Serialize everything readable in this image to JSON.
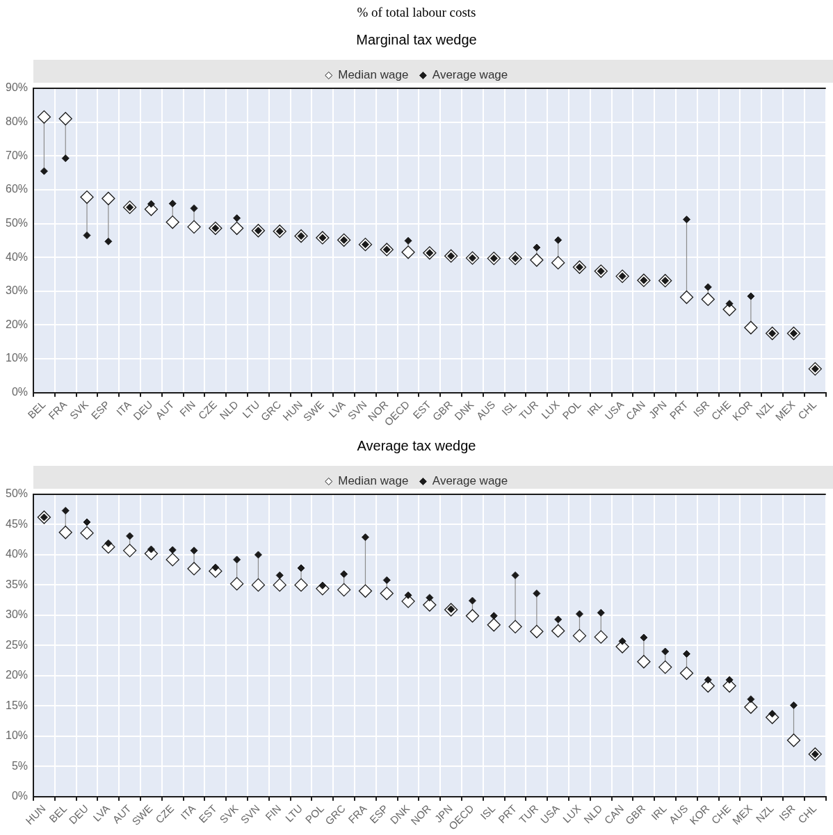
{
  "chart_data": [
    {
      "type": "scatter",
      "subtitle": "% of total labour costs",
      "title": "Marginal tax wedge",
      "legend": "top",
      "grid": true,
      "marker": "diamond",
      "categories": [
        "BEL",
        "FRA",
        "SVK",
        "ESP",
        "ITA",
        "DEU",
        "AUT",
        "FIN",
        "CZE",
        "NLD",
        "LTU",
        "GRC",
        "HUN",
        "SWE",
        "LVA",
        "SVN",
        "NOR",
        "OECD",
        "EST",
        "GBR",
        "DNK",
        "AUS",
        "ISL",
        "TUR",
        "LUX",
        "POL",
        "IRL",
        "USA",
        "CAN",
        "JPN",
        "PRT",
        "ISR",
        "CHE",
        "KOR",
        "NZL",
        "MEX",
        "CHL"
      ],
      "ylim": [
        0,
        90
      ],
      "yticks": [
        {
          "value": 0,
          "label": "0%"
        },
        {
          "value": 10,
          "label": "10%"
        },
        {
          "value": 20,
          "label": "20%"
        },
        {
          "value": 30,
          "label": "30%"
        },
        {
          "value": 40,
          "label": "40%"
        },
        {
          "value": 50,
          "label": "50%"
        },
        {
          "value": 60,
          "label": "60%"
        },
        {
          "value": 70,
          "label": "70%"
        },
        {
          "value": 80,
          "label": "80%"
        },
        {
          "value": 90,
          "label": "90%"
        }
      ],
      "series": [
        {
          "name": "Median wage",
          "color": "#ffffff",
          "values": [
            81.5,
            81,
            57.8,
            57.4,
            54.8,
            54.2,
            50.4,
            49,
            48.6,
            48.6,
            47.9,
            47.7,
            46.3,
            45.8,
            45.1,
            43.8,
            42.3,
            41.5,
            41.3,
            40.4,
            39.8,
            39.7,
            39.7,
            39.2,
            38.4,
            37.1,
            35.9,
            34.4,
            33.2,
            33.1,
            28.2,
            27.6,
            24.6,
            19.2,
            17.5,
            17.5,
            7
          ]
        },
        {
          "name": "Average wage",
          "color": "#1a1a1a",
          "values": [
            65.5,
            69.3,
            46.5,
            44.7,
            54.8,
            55.8,
            55.9,
            54.5,
            48.6,
            51.6,
            47.9,
            47.7,
            46.3,
            45.8,
            45.1,
            43.8,
            42.3,
            44.9,
            41.3,
            40.4,
            39.8,
            39.7,
            39.7,
            42.9,
            45.1,
            37.1,
            35.9,
            34.4,
            33.2,
            33.1,
            51.2,
            31.2,
            26.3,
            28.5,
            17.5,
            17.5,
            7
          ]
        }
      ]
    },
    {
      "type": "scatter",
      "title": "Average tax wedge",
      "legend": "top",
      "grid": true,
      "marker": "diamond",
      "categories": [
        "HUN",
        "BEL",
        "DEU",
        "LVA",
        "AUT",
        "SWE",
        "CZE",
        "ITA",
        "EST",
        "SVK",
        "SVN",
        "FIN",
        "LTU",
        "POL",
        "GRC",
        "FRA",
        "ESP",
        "DNK",
        "NOR",
        "JPN",
        "OECD",
        "ISL",
        "PRT",
        "TUR",
        "USA",
        "LUX",
        "NLD",
        "CAN",
        "GBR",
        "IRL",
        "AUS",
        "KOR",
        "CHE",
        "MEX",
        "NZL",
        "ISR",
        "CHL"
      ],
      "ylim": [
        0,
        50
      ],
      "yticks": [
        {
          "value": 0,
          "label": "0%"
        },
        {
          "value": 5,
          "label": "5%"
        },
        {
          "value": 10,
          "label": "10%"
        },
        {
          "value": 15,
          "label": "15%"
        },
        {
          "value": 20,
          "label": "20%"
        },
        {
          "value": 25,
          "label": "25%"
        },
        {
          "value": 30,
          "label": "30%"
        },
        {
          "value": 35,
          "label": "35%"
        },
        {
          "value": 40,
          "label": "40%"
        },
        {
          "value": 45,
          "label": "45%"
        },
        {
          "value": 50,
          "label": "50%"
        }
      ],
      "series": [
        {
          "name": "Median wage",
          "color": "#ffffff",
          "values": [
            46.2,
            43.7,
            43.6,
            41.3,
            40.7,
            40.2,
            39.2,
            37.7,
            37.3,
            35.2,
            35,
            35,
            35,
            34.4,
            34.2,
            34,
            33.6,
            32.3,
            31.7,
            30.9,
            29.9,
            28.4,
            28.1,
            27.3,
            27.4,
            26.6,
            26.4,
            24.8,
            22.3,
            21.4,
            20.4,
            18.3,
            18.3,
            14.8,
            13.1,
            9.3,
            7
          ]
        },
        {
          "name": "Average wage",
          "color": "#1a1a1a",
          "values": [
            46.2,
            47.3,
            45.4,
            41.9,
            43.1,
            40.9,
            40.8,
            40.7,
            37.9,
            39.2,
            40,
            36.6,
            37.8,
            34.9,
            36.8,
            42.9,
            35.8,
            33.3,
            32.9,
            31,
            32.4,
            29.9,
            36.6,
            33.6,
            29.3,
            30.2,
            30.4,
            25.7,
            26.3,
            24,
            23.6,
            19.3,
            19.3,
            16.1,
            13.7,
            15.1,
            7
          ]
        }
      ]
    }
  ]
}
